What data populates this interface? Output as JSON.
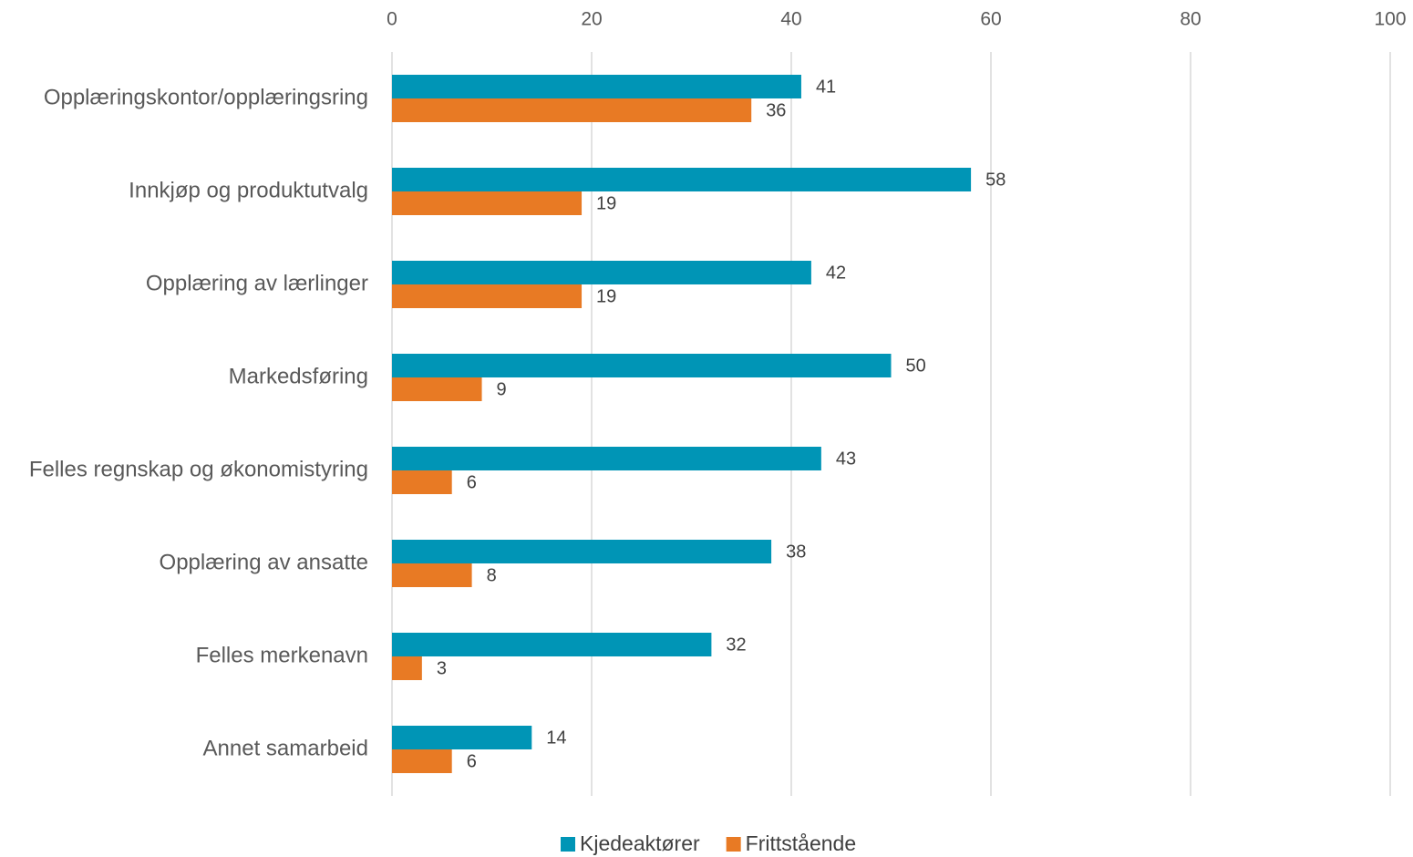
{
  "chart_data": {
    "type": "barh",
    "categories": [
      "Opplæringskontor/opplæringsring",
      "Innkjøp og produktutvalg",
      "Opplæring av lærlinger",
      "Markedsføring",
      "Felles regnskap og økonomistyring",
      "Opplæring av ansatte",
      "Felles merkenavn",
      "Annet samarbeid"
    ],
    "series": [
      {
        "name": "Kjedeaktører",
        "color": "#0095b6",
        "values": [
          41,
          58,
          42,
          50,
          43,
          38,
          32,
          14
        ]
      },
      {
        "name": "Frittstående",
        "color": "#e87a24",
        "values": [
          36,
          19,
          19,
          9,
          6,
          8,
          3,
          6
        ]
      }
    ],
    "xlim": [
      0,
      100
    ],
    "xticks": [
      0,
      20,
      40,
      60,
      80,
      100
    ],
    "grid": true,
    "legend": "bottom"
  }
}
